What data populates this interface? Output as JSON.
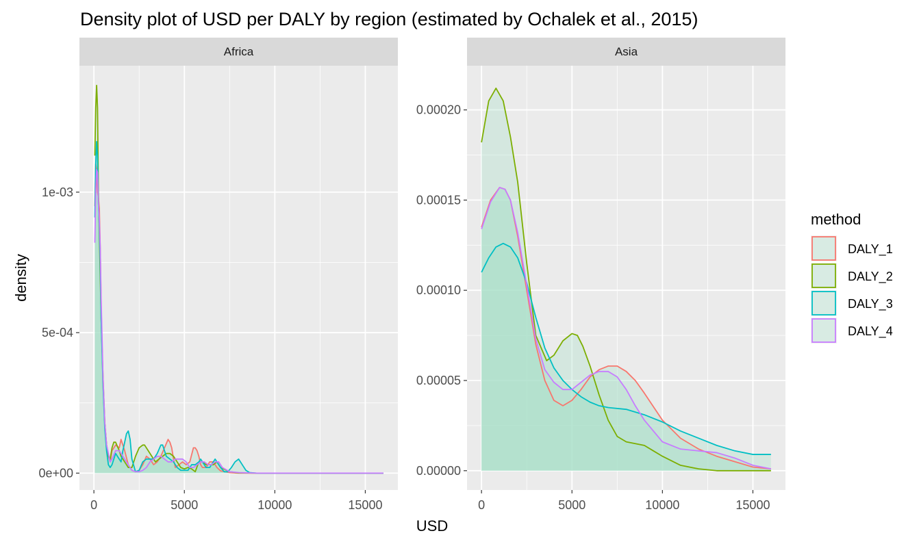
{
  "chart_data": {
    "type": "area",
    "title": "Density plot of USD per DALY by region (estimated by Ochalek et al., 2015)",
    "xlabel": "USD",
    "ylabel": "density",
    "grid": true,
    "legend": {
      "title": "method",
      "placement": "right"
    },
    "series_meta": [
      {
        "name": "DALY_1",
        "color": "#F8766D"
      },
      {
        "name": "DALY_2",
        "color": "#7CAE00"
      },
      {
        "name": "DALY_3",
        "color": "#00BFC4"
      },
      {
        "name": "DALY_4",
        "color": "#C77CFF"
      }
    ],
    "fill_color": "#a8e0c8",
    "panels": [
      {
        "strip": "Africa",
        "xlim": [
          -800,
          16800
        ],
        "ylim": [
          -6e-05,
          0.00145
        ],
        "xticks": [
          0,
          5000,
          10000,
          15000
        ],
        "xtick_labels": [
          "0",
          "5000",
          "10000",
          "15000"
        ],
        "yticks": [
          0,
          0.0005,
          0.001
        ],
        "ytick_labels": [
          "0e+00",
          "5e-04",
          "1e-03"
        ],
        "series": [
          {
            "name": "DALY_1",
            "x": [
              50,
              100,
              150,
              200,
              250,
              300,
              350,
              400,
              500,
              600,
              700,
              800,
              900,
              1000,
              1200,
              1400,
              1500,
              1700,
              1900,
              2100,
              2300,
              2500,
              2700,
              2900,
              3100,
              3300,
              3500,
              3700,
              3900,
              4100,
              4200,
              4300,
              4400,
              4500,
              4700,
              4900,
              5100,
              5300,
              5500,
              5600,
              5700,
              5800,
              5900,
              6000,
              6200,
              6400,
              6600,
              6800,
              7000,
              7500,
              8000,
              9000,
              10000,
              12000,
              14000,
              16000
            ],
            "y": [
              0.00095,
              0.0011,
              0.00108,
              0.001,
              0.00098,
              0.00094,
              0.0008,
              0.0006,
              0.00032,
              0.00018,
              0.0001,
              6e-05,
              4e-05,
              8e-05,
              0.0001,
              9e-05,
              0.00012,
              8e-05,
              3e-05,
              1e-05,
              5e-06,
              1e-05,
              3e-05,
              6e-05,
              5e-05,
              3e-05,
              4e-05,
              6e-05,
              9e-05,
              0.00012,
              0.00011,
              9e-05,
              5e-05,
              2e-05,
              3e-05,
              4e-05,
              3e-05,
              4e-05,
              9e-05,
              9e-05,
              8e-05,
              6e-05,
              3e-05,
              2e-05,
              2e-05,
              4e-05,
              4e-05,
              2e-05,
              8e-06,
              2e-06,
              0,
              0,
              0,
              0,
              0,
              0
            ]
          },
          {
            "name": "DALY_2",
            "x": [
              50,
              100,
              150,
              200,
              250,
              300,
              350,
              400,
              500,
              600,
              700,
              800,
              900,
              1000,
              1100,
              1200,
              1400,
              1500,
              1700,
              1900,
              2100,
              2300,
              2500,
              2700,
              2800,
              3000,
              3200,
              3400,
              3600,
              3800,
              4000,
              4200,
              4400,
              4600,
              4800,
              5000,
              5200,
              5400,
              5600,
              5800,
              6000,
              6200,
              6400,
              6600,
              6800,
              7000,
              7500,
              8000,
              9000,
              10000,
              12000,
              14000,
              16000
            ],
            "y": [
              0.00113,
              0.0013,
              0.00138,
              0.0013,
              0.001,
              0.00085,
              0.0007,
              0.00055,
              0.00035,
              0.00018,
              0.0001,
              6e-05,
              5e-05,
              9e-05,
              0.00011,
              0.00011,
              8e-05,
              6e-05,
              4e-05,
              2e-05,
              2e-05,
              6e-05,
              9e-05,
              0.0001,
              0.0001,
              8e-05,
              6e-05,
              4e-05,
              5e-05,
              6e-05,
              7e-05,
              7e-05,
              6e-05,
              4e-05,
              2e-05,
              1.5e-05,
              2e-05,
              1.5e-05,
              5e-06,
              4e-05,
              4e-05,
              3e-05,
              3e-05,
              3e-05,
              4e-05,
              2e-05,
              5e-06,
              1e-06,
              0,
              0,
              0,
              0,
              0
            ]
          },
          {
            "name": "DALY_3",
            "x": [
              50,
              100,
              150,
              200,
              250,
              300,
              350,
              400,
              500,
              600,
              700,
              800,
              900,
              1000,
              1200,
              1400,
              1500,
              1600,
              1800,
              1900,
              2000,
              2100,
              2300,
              2500,
              2700,
              2900,
              3100,
              3300,
              3500,
              3700,
              3800,
              3900,
              4000,
              4200,
              4400,
              4500,
              4600,
              4800,
              5000,
              5200,
              5400,
              5600,
              5800,
              5900,
              6000,
              6200,
              6400,
              6600,
              6700,
              6800,
              7000,
              7200,
              7400,
              7600,
              7800,
              8000,
              8200,
              8400,
              8600,
              9000,
              10000,
              12000,
              14000,
              16000
            ],
            "y": [
              0.00091,
              0.0011,
              0.00118,
              0.00113,
              0.00096,
              0.00088,
              0.00075,
              0.00055,
              0.00032,
              0.00016,
              8e-05,
              3e-05,
              2e-05,
              3e-05,
              7e-05,
              5e-05,
              4e-05,
              8e-05,
              0.00014,
              0.00015,
              0.00012,
              5e-05,
              5e-06,
              1e-05,
              4e-05,
              5e-05,
              5e-05,
              5e-05,
              7e-05,
              0.0001,
              0.0001,
              8e-05,
              6e-05,
              5e-05,
              4e-05,
              3e-05,
              2e-05,
              1e-05,
              1e-05,
              1e-05,
              3e-05,
              3e-05,
              4e-05,
              5e-05,
              4e-05,
              2e-05,
              2e-05,
              4e-05,
              5e-05,
              4e-05,
              2e-05,
              5e-06,
              5e-06,
              2e-05,
              4e-05,
              5e-05,
              3e-05,
              1e-05,
              2e-06,
              0,
              0,
              0,
              0,
              0
            ]
          },
          {
            "name": "DALY_4",
            "x": [
              50,
              100,
              150,
              200,
              250,
              300,
              350,
              400,
              500,
              600,
              700,
              800,
              900,
              1000,
              1200,
              1400,
              1500,
              1700,
              1900,
              2100,
              2300,
              2500,
              2700,
              2900,
              3100,
              3300,
              3500,
              3700,
              3900,
              4100,
              4300,
              4500,
              4700,
              4900,
              5100,
              5300,
              5500,
              5700,
              5900,
              6100,
              6300,
              6500,
              6700,
              6900,
              7100,
              7500,
              8000,
              9000,
              10000,
              12000,
              14000,
              16000
            ],
            "y": [
              0.00082,
              0.001,
              0.00108,
              0.00107,
              0.00096,
              0.0009,
              0.0008,
              0.00062,
              0.00035,
              0.00018,
              0.0001,
              7e-05,
              4e-05,
              5e-05,
              8e-05,
              8e-05,
              7e-05,
              5e-05,
              3e-05,
              1e-05,
              5e-06,
              5e-06,
              1e-05,
              2e-05,
              4e-05,
              5e-05,
              6e-05,
              6e-05,
              5e-05,
              4e-05,
              4e-05,
              5e-05,
              5e-05,
              5e-05,
              4e-05,
              2e-05,
              2e-05,
              3e-05,
              4e-05,
              4e-05,
              3e-05,
              3e-05,
              4e-05,
              4e-05,
              2e-05,
              5e-06,
              2e-06,
              0,
              0,
              0,
              0,
              0
            ]
          }
        ]
      },
      {
        "strip": "Asia",
        "xlim": [
          -800,
          16800
        ],
        "ylim": [
          -1.07e-05,
          0.0002245
        ],
        "xticks": [
          0,
          5000,
          10000,
          15000
        ],
        "xtick_labels": [
          "0",
          "5000",
          "10000",
          "15000"
        ],
        "yticks": [
          0,
          5e-05,
          0.0001,
          0.00015,
          0.0002
        ],
        "ytick_labels": [
          "0.00000",
          "0.00005",
          "0.00010",
          "0.00015",
          "0.00020"
        ],
        "series": [
          {
            "name": "DALY_1",
            "x": [
              0,
              500,
              1000,
              1300,
              1600,
              2000,
              2500,
              3000,
              3500,
              4000,
              4500,
              5000,
              5500,
              6000,
              6500,
              7000,
              7500,
              8000,
              8500,
              9000,
              10000,
              11000,
              12000,
              13000,
              14000,
              15000,
              16000
            ],
            "y": [
              0.000135,
              0.00015,
              0.000157,
              0.000156,
              0.00015,
              0.00013,
              0.0001,
              7e-05,
              5e-05,
              3.9e-05,
              3.6e-05,
              3.9e-05,
              4.5e-05,
              5.2e-05,
              5.6e-05,
              5.8e-05,
              5.8e-05,
              5.5e-05,
              5e-05,
              4.3e-05,
              2.8e-05,
              1.8e-05,
              1.2e-05,
              8e-06,
              5e-06,
              2e-06,
              1e-06
            ]
          },
          {
            "name": "DALY_2",
            "x": [
              0,
              400,
              800,
              1200,
              1600,
              2000,
              2500,
              3000,
              3600,
              4000,
              4500,
              5000,
              5300,
              5600,
              6000,
              6500,
              7000,
              7500,
              8000,
              8500,
              9000,
              9500,
              10000,
              11000,
              12000,
              13000,
              14000,
              15000,
              16000
            ],
            "y": [
              0.000182,
              0.000205,
              0.000212,
              0.000205,
              0.000185,
              0.00016,
              0.000115,
              7.5e-05,
              6.1e-05,
              6.4e-05,
              7.2e-05,
              7.6e-05,
              7.5e-05,
              6.9e-05,
              5.8e-05,
              4.2e-05,
              2.8e-05,
              1.9e-05,
              1.6e-05,
              1.5e-05,
              1.4e-05,
              1.1e-05,
              8e-06,
              3e-06,
              1e-06,
              0,
              0,
              0,
              0
            ]
          },
          {
            "name": "DALY_3",
            "x": [
              0,
              400,
              800,
              1200,
              1600,
              2000,
              2500,
              3000,
              3500,
              4000,
              4500,
              5000,
              5500,
              6000,
              6500,
              7000,
              8000,
              9000,
              10000,
              11000,
              12000,
              13000,
              14000,
              15000,
              16000
            ],
            "y": [
              0.00011,
              0.000118,
              0.000124,
              0.000126,
              0.000124,
              0.000118,
              0.000104,
              8.5e-05,
              6.8e-05,
              5.7e-05,
              5e-05,
              4.5e-05,
              4.1e-05,
              3.8e-05,
              3.6e-05,
              3.5e-05,
              3.4e-05,
              3.1e-05,
              2.7e-05,
              2.2e-05,
              1.8e-05,
              1.4e-05,
              1.1e-05,
              9e-06,
              9e-06
            ]
          },
          {
            "name": "DALY_4",
            "x": [
              0,
              500,
              1000,
              1300,
              1600,
              2000,
              2500,
              3000,
              3500,
              4000,
              4500,
              5000,
              5500,
              6000,
              6500,
              7000,
              7500,
              8000,
              8500,
              9000,
              10000,
              11000,
              12000,
              13000,
              14000,
              15000,
              16000
            ],
            "y": [
              0.000134,
              0.000149,
              0.000157,
              0.000156,
              0.00015,
              0.000132,
              0.000103,
              7.3e-05,
              5.6e-05,
              4.9e-05,
              4.5e-05,
              4.5e-05,
              4.9e-05,
              5.3e-05,
              5.5e-05,
              5.5e-05,
              5.2e-05,
              4.5e-05,
              3.6e-05,
              2.8e-05,
              1.6e-05,
              1.2e-05,
              1.1e-05,
              1e-05,
              7e-06,
              3e-06,
              1e-06
            ]
          }
        ]
      }
    ]
  }
}
